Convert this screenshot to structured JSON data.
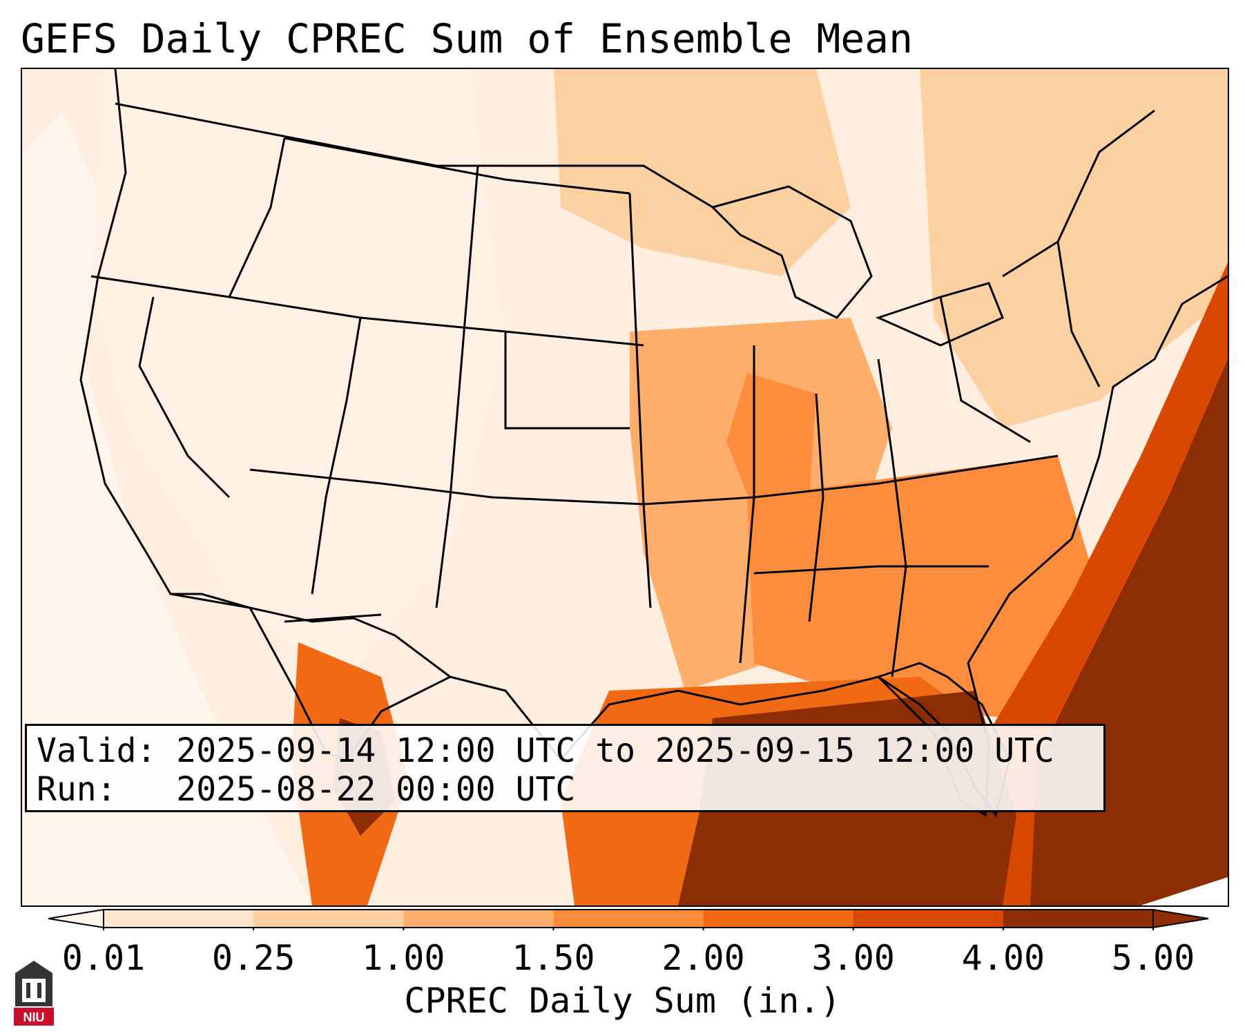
{
  "title": "GEFS Daily CPREC Sum of Ensemble Mean",
  "info": {
    "valid_label": "Valid:",
    "valid_value": "2025-09-14 12:00 UTC to 2025-09-15 12:00 UTC",
    "run_label": "Run:",
    "run_value": "2025-08-22 00:00 UTC"
  },
  "colorbar": {
    "label": "CPREC Daily Sum (in.)",
    "ticks": [
      "0.01",
      "0.25",
      "1.00",
      "1.50",
      "2.00",
      "3.00",
      "4.00",
      "5.00"
    ],
    "colors": [
      "#fff5eb",
      "#fee6ce",
      "#fdd0a2",
      "#fdae6b",
      "#fd8d3c",
      "#f16913",
      "#d94801",
      "#8c2d04"
    ],
    "extend": "both"
  },
  "logo": {
    "text": "NIU",
    "color": "#c8102e"
  },
  "map": {
    "region": "Contiguous United States",
    "precip_colors": {
      "very_light": "#fff5eb",
      "light": "#fee6ce",
      "light_mid": "#fdd0a2",
      "mid": "#fdae6b",
      "orange": "#fd8d3c",
      "dark_orange": "#f16913",
      "darker": "#d94801",
      "brown": "#8c2d04"
    }
  }
}
